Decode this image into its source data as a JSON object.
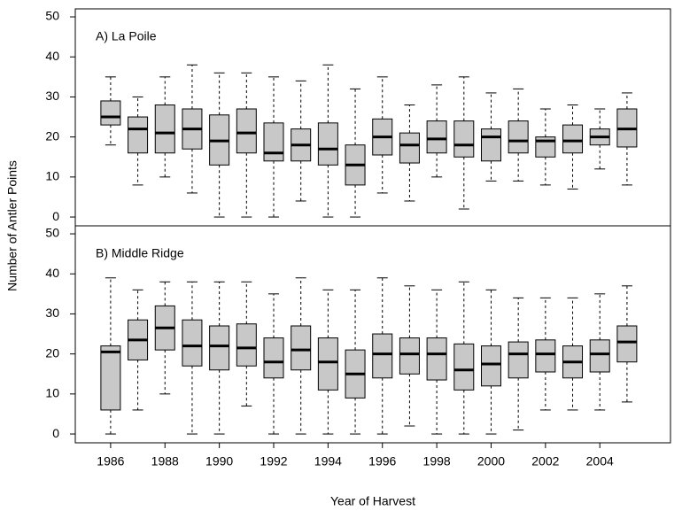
{
  "chart_data": [
    {
      "type": "box",
      "title": "A) La Poile",
      "ylabel": "Number of Antler Points",
      "x": [
        1986,
        1987,
        1988,
        1989,
        1990,
        1991,
        1992,
        1993,
        1994,
        1995,
        1996,
        1997,
        1998,
        1999,
        2000,
        2001,
        2002,
        2003,
        2004,
        2005
      ],
      "xlim": [
        1984.7,
        2006.6
      ],
      "low": [
        18,
        8,
        10,
        6,
        0,
        0,
        0,
        4,
        0,
        0,
        6,
        4,
        10,
        2,
        9,
        9,
        8,
        7,
        12,
        8
      ],
      "q1": [
        23,
        16,
        16,
        17,
        13,
        16,
        14,
        14,
        13,
        8,
        15.5,
        13.5,
        16,
        15,
        14,
        16,
        15,
        16,
        18,
        17.5
      ],
      "median": [
        25,
        22,
        21,
        22,
        19,
        21,
        16,
        18,
        17,
        13,
        20,
        18,
        19.5,
        18,
        20,
        19,
        19,
        19,
        20,
        22
      ],
      "q3": [
        29,
        25,
        28,
        27,
        25.5,
        27,
        23.5,
        22,
        23.5,
        18,
        24.5,
        21,
        24,
        24,
        22,
        24,
        20,
        23,
        22,
        27
      ],
      "high": [
        35,
        30,
        35,
        38,
        36,
        36,
        35,
        34,
        38,
        32,
        35,
        28,
        33,
        35,
        31,
        32,
        27,
        28,
        27,
        31
      ],
      "color": "#c8c8c8",
      "ylim": [
        -2.2,
        52
      ],
      "yticks": [
        0,
        10,
        20,
        30,
        40,
        50
      ]
    },
    {
      "type": "box",
      "title": "B) Middle Ridge",
      "xlabel": "Year of Harvest",
      "x": [
        1986,
        1987,
        1988,
        1989,
        1990,
        1991,
        1992,
        1993,
        1994,
        1995,
        1996,
        1997,
        1998,
        1999,
        2000,
        2001,
        2002,
        2003,
        2004,
        2005
      ],
      "xlim": [
        1984.7,
        2006.6
      ],
      "xticks": [
        1986,
        1988,
        1990,
        1992,
        1994,
        1996,
        1998,
        2000,
        2002,
        2004
      ],
      "low": [
        0,
        6,
        10,
        0,
        0,
        7,
        0,
        0,
        0,
        0,
        0,
        2,
        0,
        0,
        0,
        1,
        6,
        6,
        6,
        8
      ],
      "q1": [
        6,
        18.5,
        21,
        17,
        16,
        17,
        14,
        16,
        11,
        9,
        14,
        15,
        13.5,
        11,
        12,
        14,
        15.5,
        14,
        15.5,
        18
      ],
      "median": [
        20.5,
        23.5,
        26.5,
        22,
        22,
        21.5,
        18,
        21,
        18,
        15,
        20,
        20,
        20,
        16,
        17.5,
        20,
        20,
        18,
        20,
        23
      ],
      "q3": [
        22,
        28.5,
        32,
        28.5,
        27,
        27.5,
        24,
        27,
        24,
        21,
        25,
        24,
        24,
        22.5,
        22,
        23,
        23.5,
        22,
        23.5,
        27
      ],
      "high": [
        39,
        36,
        38,
        38,
        38,
        38,
        35,
        39,
        36,
        36,
        39,
        37,
        36,
        38,
        36,
        34,
        34,
        34,
        35,
        37
      ],
      "color": "#c8c8c8",
      "ylim": [
        -2.2,
        52
      ],
      "yticks": [
        0,
        10,
        20,
        30,
        40,
        50
      ]
    }
  ]
}
